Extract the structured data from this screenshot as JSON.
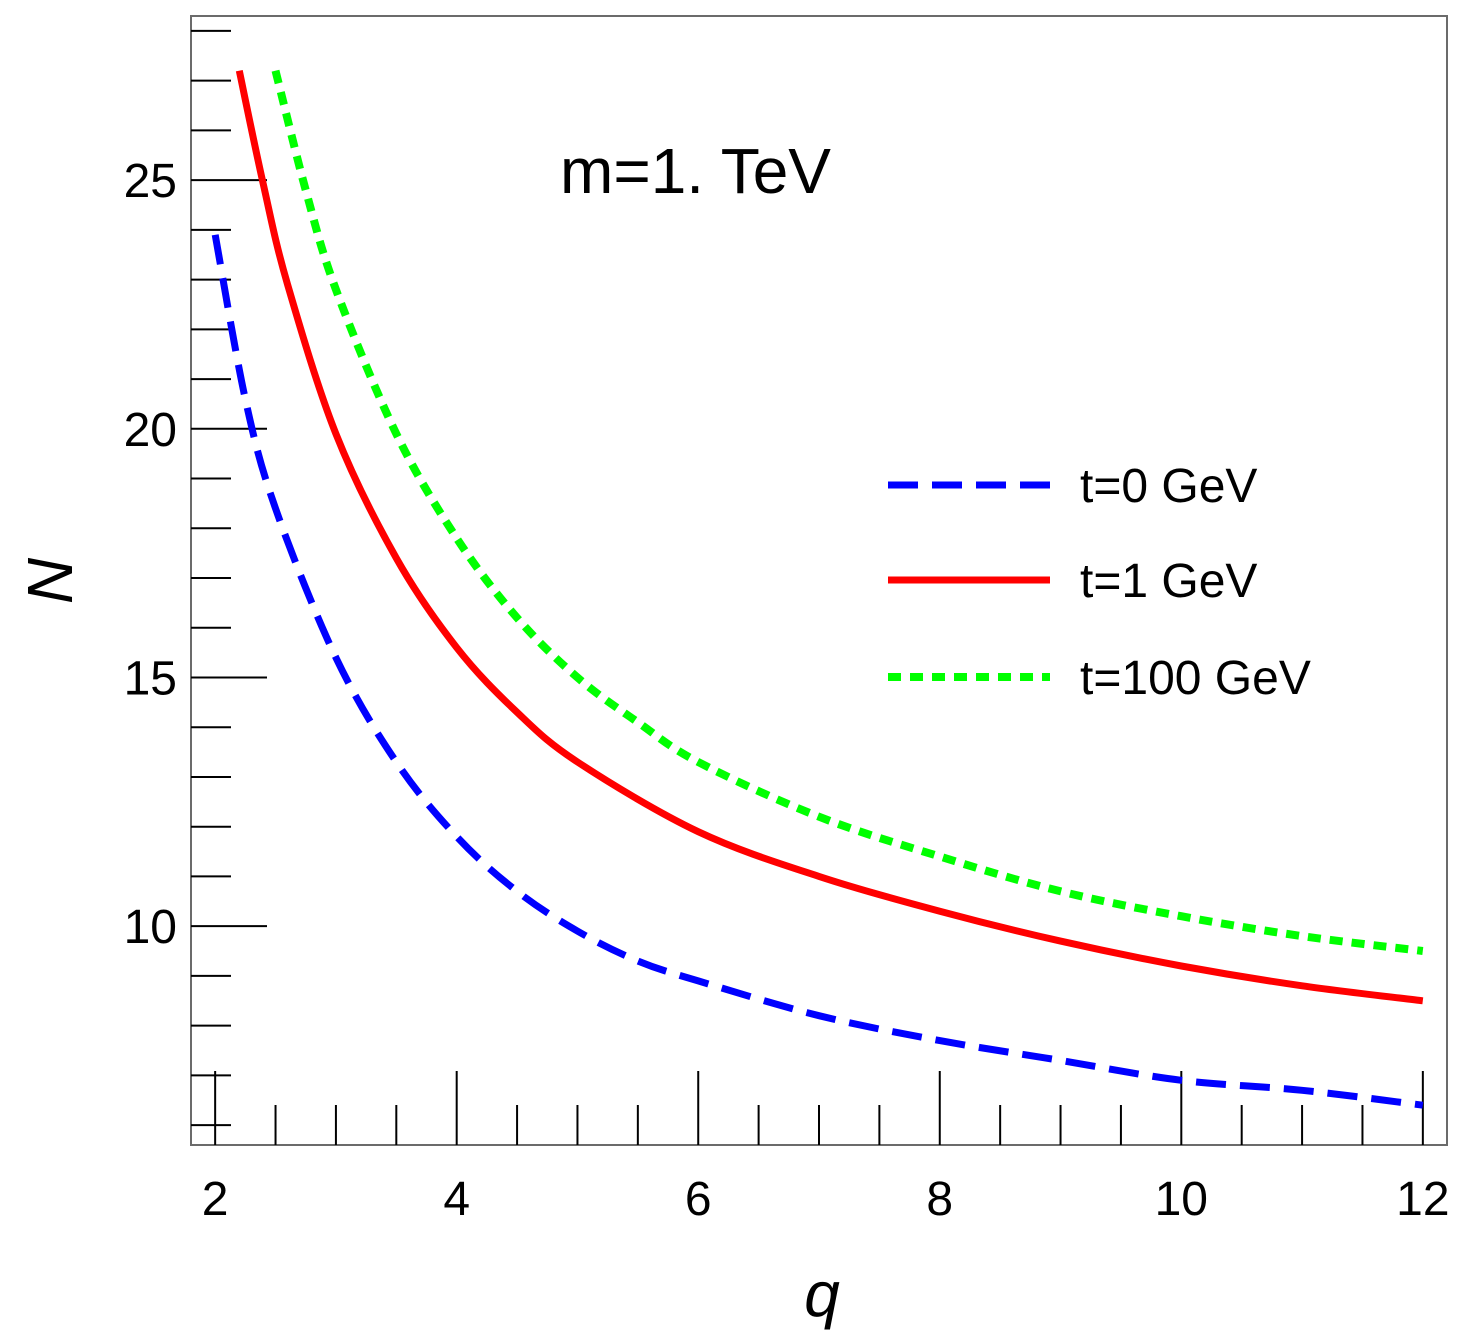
{
  "chart_data": {
    "type": "line",
    "title": "",
    "annotation": "m=1. TeV",
    "xlabel": "q",
    "ylabel": "N",
    "xlim": [
      1.8,
      12.2
    ],
    "ylim": [
      5.6,
      28.3
    ],
    "x_ticks": [
      "2",
      "4",
      "6",
      "8",
      "10",
      "12"
    ],
    "y_ticks": [
      "10",
      "15",
      "20",
      "25"
    ],
    "grid": false,
    "legend_position": "center-right",
    "series": [
      {
        "name": "t=0 GeV",
        "color": "#0000ff",
        "style": "dashed",
        "x": [
          2.0,
          2.25,
          2.5,
          3.0,
          3.5,
          4.0,
          4.5,
          5.0,
          5.5,
          6.0,
          7.0,
          8.0,
          9.0,
          10.0,
          11.0,
          12.0
        ],
        "y": [
          23.9,
          20.6,
          18.4,
          15.4,
          13.3,
          11.8,
          10.7,
          9.9,
          9.3,
          8.9,
          8.2,
          7.7,
          7.3,
          6.9,
          6.7,
          6.4
        ]
      },
      {
        "name": "t=1 GeV",
        "color": "#ff0000",
        "style": "solid",
        "x": [
          2.2,
          2.4,
          2.6,
          3.0,
          3.5,
          4.0,
          4.5,
          5.0,
          6.0,
          7.0,
          8.0,
          9.0,
          10.0,
          11.0,
          12.0
        ],
        "y": [
          27.2,
          24.9,
          22.9,
          19.9,
          17.4,
          15.6,
          14.3,
          13.3,
          11.9,
          11.0,
          10.3,
          9.7,
          9.2,
          8.8,
          8.5
        ]
      },
      {
        "name": "t=100 GeV",
        "color": "#00ff00",
        "style": "dotted",
        "x": [
          2.5,
          2.75,
          3.0,
          3.5,
          4.0,
          4.5,
          5.0,
          5.5,
          6.0,
          7.0,
          8.0,
          9.0,
          10.0,
          11.0,
          12.0
        ],
        "y": [
          27.2,
          24.8,
          22.8,
          19.9,
          17.8,
          16.2,
          15.0,
          14.1,
          13.3,
          12.2,
          11.4,
          10.7,
          10.2,
          9.8,
          9.5
        ]
      }
    ]
  }
}
